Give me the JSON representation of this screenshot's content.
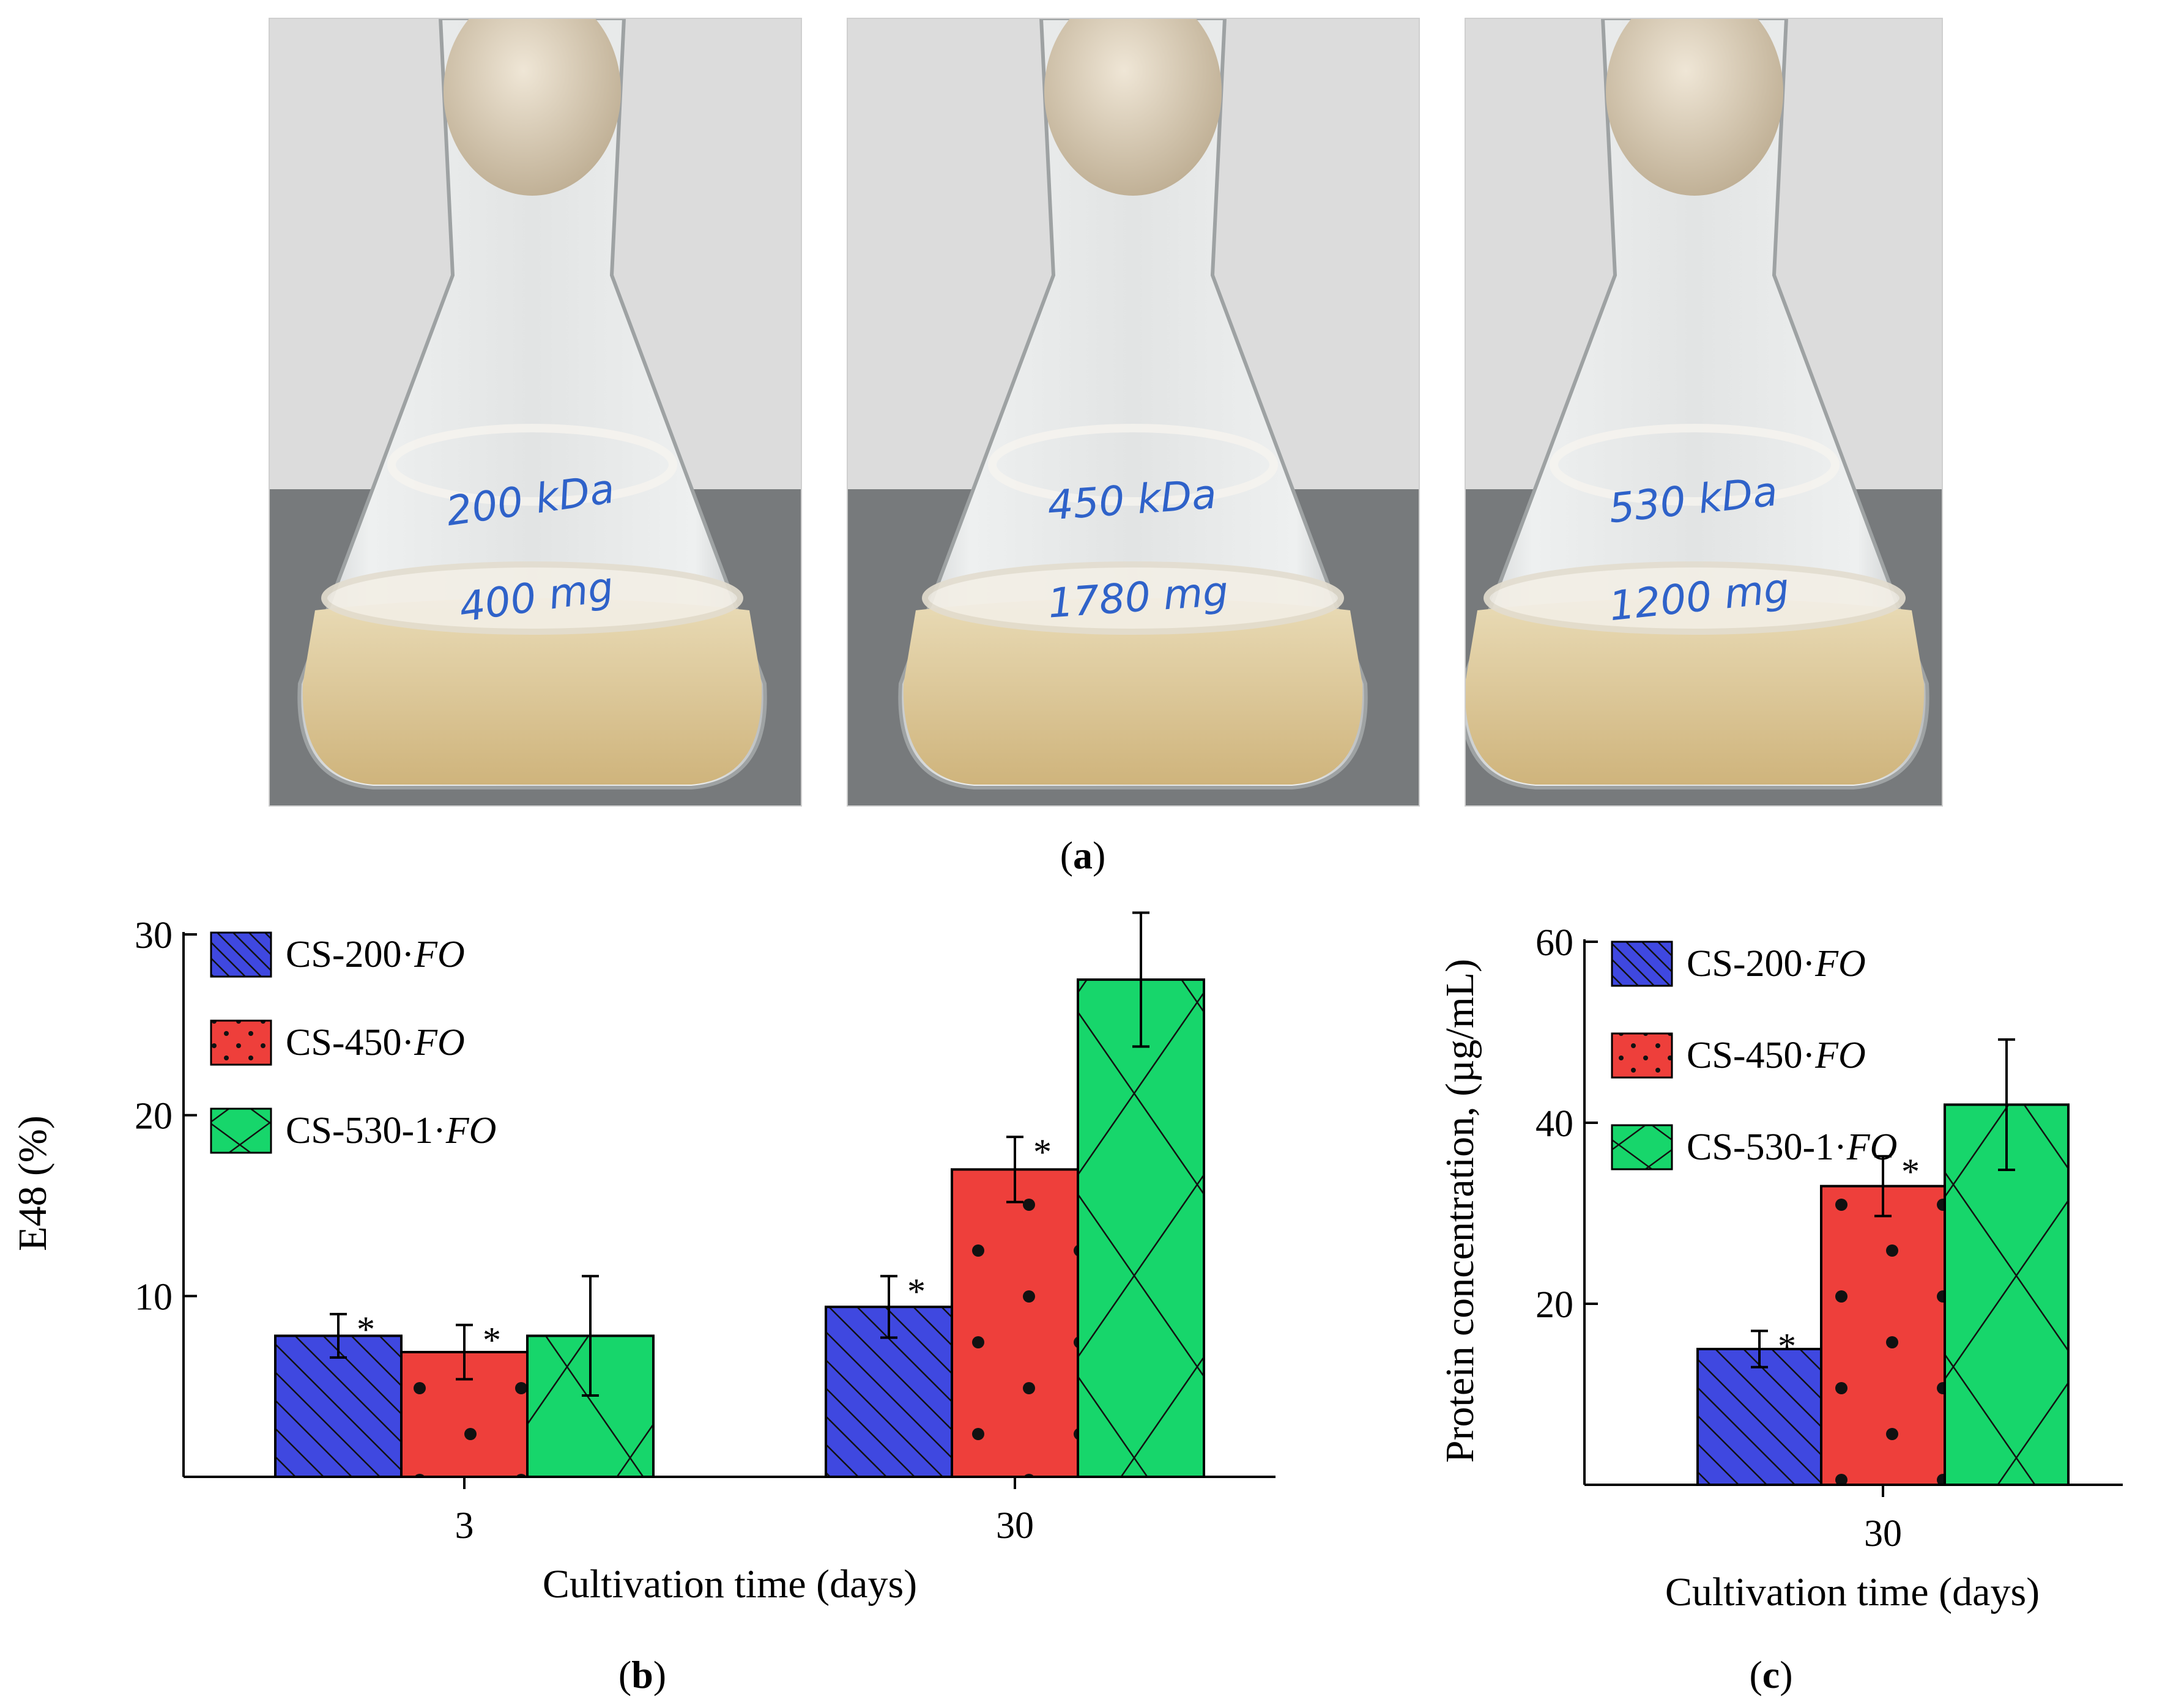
{
  "figure": {
    "panel_a_label": "(a)",
    "panel_b_label": "(b)",
    "panel_c_label": "(c)",
    "photos": [
      {
        "label_line1": "200 kDa",
        "label_line2": "400 mg"
      },
      {
        "label_line1": "450 kDa",
        "label_line2": "1780 mg"
      },
      {
        "label_line1": "530 kDa",
        "label_line2": "1200 mg"
      }
    ]
  },
  "colors": {
    "cs200": "#3f48e0",
    "cs450": "#ee3f3b",
    "cs530": "#17d66b",
    "flask_bg": "#dcdcdc",
    "table": "#777a7c",
    "liquid": "#dcc79a",
    "ink": "#2f62c9"
  },
  "legend": [
    {
      "prefix": "CS-200·",
      "suffix": "FO",
      "pattern": "diag"
    },
    {
      "prefix": "CS-450·",
      "suffix": "FO",
      "pattern": "dots"
    },
    {
      "prefix": "CS-530-1·",
      "suffix": "FO",
      "pattern": "cross"
    }
  ],
  "chart_data": [
    {
      "id": "b",
      "type": "bar",
      "ylabel": "E48 (%)",
      "xlabel": "Cultivation time (days)",
      "categories": [
        "3",
        "30"
      ],
      "ylim": [
        0,
        30
      ],
      "yticks": [
        10,
        20,
        30
      ],
      "series": [
        {
          "name": "CS-200·FO",
          "values": [
            7.8,
            9.4
          ],
          "errors": [
            1.2,
            1.7
          ],
          "significant": [
            true,
            true
          ]
        },
        {
          "name": "CS-450·FO",
          "values": [
            6.9,
            17.0
          ],
          "errors": [
            1.5,
            1.8
          ],
          "significant": [
            true,
            true
          ]
        },
        {
          "name": "CS-530-1·FO",
          "values": [
            7.8,
            27.5
          ],
          "errors": [
            3.3,
            3.7
          ],
          "significant": [
            false,
            false
          ]
        }
      ]
    },
    {
      "id": "c",
      "type": "bar",
      "ylabel": "Protein concentration, (µg/mL)",
      "xlabel": "Cultivation time (days)",
      "categories": [
        "30"
      ],
      "ylim": [
        0,
        60
      ],
      "yticks": [
        20,
        40,
        60
      ],
      "series": [
        {
          "name": "CS-200·FO",
          "values": [
            15.0
          ],
          "errors": [
            2.0
          ],
          "significant": [
            true
          ]
        },
        {
          "name": "CS-450·FO",
          "values": [
            33.0
          ],
          "errors": [
            3.3
          ],
          "significant": [
            true
          ]
        },
        {
          "name": "CS-530-1·FO",
          "values": [
            42.0
          ],
          "errors": [
            7.2
          ],
          "significant": [
            false
          ]
        }
      ],
      "significance_marker": "*"
    }
  ]
}
